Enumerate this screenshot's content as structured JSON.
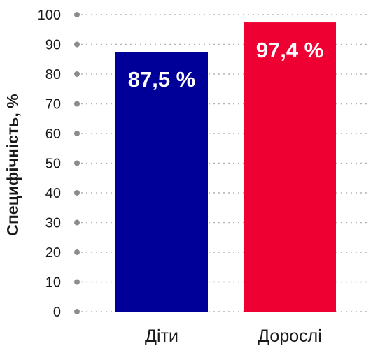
{
  "chart_data": {
    "type": "bar",
    "categories": [
      "Діти",
      "Дорослі"
    ],
    "values": [
      87.5,
      97.4
    ],
    "data_labels": [
      "87,5 %",
      "97,4 %"
    ],
    "colors": [
      "#000099",
      "#ee0033"
    ],
    "title": "",
    "xlabel": "",
    "ylabel": "Специфічність, %",
    "ylim": [
      0,
      100
    ],
    "yticks": [
      0,
      10,
      20,
      30,
      40,
      50,
      60,
      70,
      80,
      90,
      100
    ],
    "grid": true,
    "grid_color": "#b3b3b3",
    "axis_marker_color": "#8c8c8c"
  }
}
